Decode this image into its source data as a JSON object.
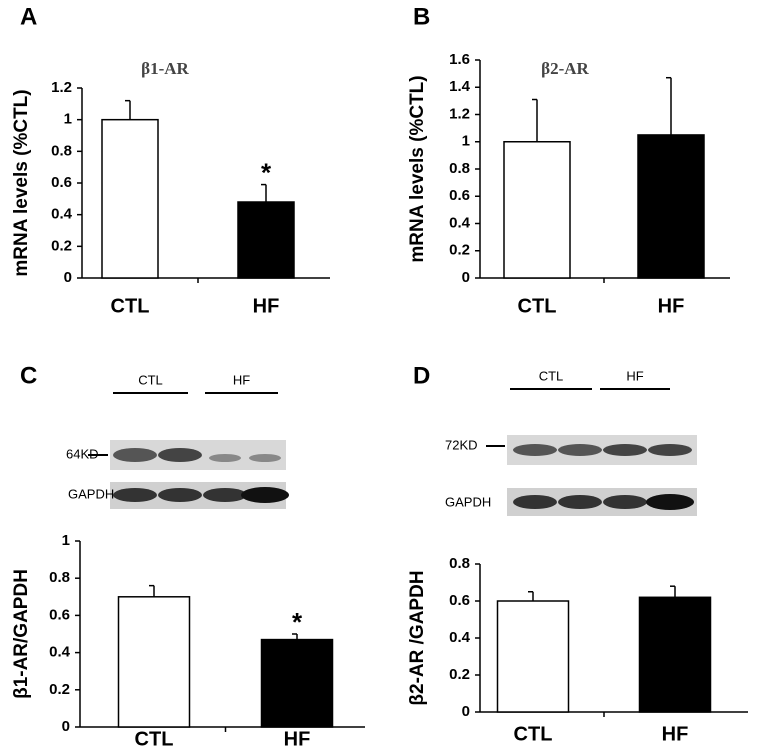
{
  "chart_data": [
    {
      "type": "bar",
      "panel": "A",
      "title": "β1-AR",
      "y_label": "mRNA levels (%CTL)",
      "categories": [
        "CTL",
        "HF"
      ],
      "values": [
        1.0,
        0.48
      ],
      "errors": [
        0.12,
        0.11
      ],
      "colors": [
        "#ffffff",
        "#000000"
      ],
      "ylim": [
        0,
        1.2
      ],
      "yticks": [
        0,
        0.2,
        0.4,
        0.6,
        0.8,
        1,
        1.2
      ],
      "annotations": [
        {
          "text": "*",
          "x": "HF"
        }
      ]
    },
    {
      "type": "bar",
      "panel": "B",
      "title": "β2-AR",
      "y_label": "mRNA levels (%CTL)",
      "categories": [
        "CTL",
        "HF"
      ],
      "values": [
        1.0,
        1.05
      ],
      "errors": [
        0.31,
        0.42
      ],
      "colors": [
        "#ffffff",
        "#000000"
      ],
      "ylim": [
        0,
        1.6
      ],
      "yticks": [
        0,
        0.2,
        0.4,
        0.6,
        0.8,
        1,
        1.2,
        1.4,
        1.6
      ]
    },
    {
      "type": "bar",
      "panel": "C",
      "y_label": "β1-AR/GAPDH",
      "categories": [
        "CTL",
        "HF"
      ],
      "values": [
        0.7,
        0.47
      ],
      "errors": [
        0.06,
        0.03
      ],
      "colors": [
        "#ffffff",
        "#000000"
      ],
      "ylim": [
        0,
        1
      ],
      "yticks": [
        0,
        0.2,
        0.4,
        0.6,
        0.8,
        1
      ],
      "annotations": [
        {
          "text": "*",
          "x": "HF"
        }
      ],
      "blot": {
        "groups": [
          "CTL",
          "HF"
        ],
        "marker": "64KD",
        "loading": "GAPDH"
      }
    },
    {
      "type": "bar",
      "panel": "D",
      "y_label": "β2-AR /GAPDH",
      "categories": [
        "CTL",
        "HF"
      ],
      "values": [
        0.6,
        0.62
      ],
      "errors": [
        0.05,
        0.06
      ],
      "colors": [
        "#ffffff",
        "#000000"
      ],
      "ylim": [
        0,
        0.8
      ],
      "yticks": [
        0,
        0.2,
        0.4,
        0.6,
        0.8
      ],
      "blot": {
        "groups": [
          "CTL",
          "HF"
        ],
        "marker": "72KD",
        "loading": "GAPDH"
      }
    }
  ]
}
